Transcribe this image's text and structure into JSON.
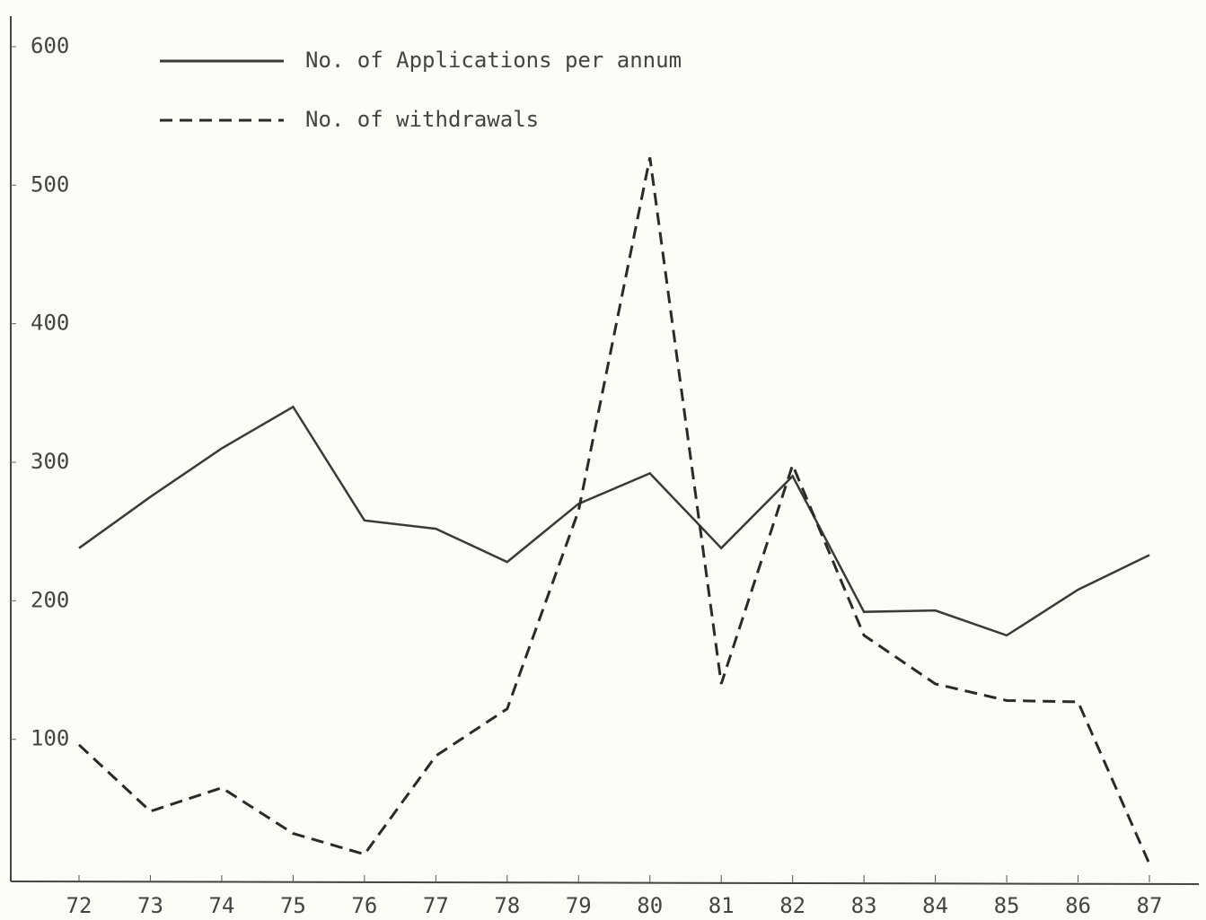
{
  "chart_data": {
    "type": "line",
    "categories": [
      "72",
      "73",
      "74",
      "75",
      "76",
      "77",
      "78",
      "79",
      "80",
      "81",
      "82",
      "83",
      "84",
      "85",
      "86",
      "87"
    ],
    "series": [
      {
        "name": "No. of Applications per annum",
        "color": "#3a3a3a",
        "style": "solid",
        "values": [
          238,
          275,
          310,
          340,
          258,
          252,
          228,
          270,
          292,
          238,
          290,
          192,
          193,
          175,
          208,
          233
        ]
      },
      {
        "name": "No. of withdrawals",
        "color": "#2a2a2a",
        "style": "dashed",
        "values": [
          96,
          48,
          65,
          32,
          17,
          88,
          122,
          265,
          520,
          140,
          298,
          175,
          140,
          128,
          127,
          10
        ]
      }
    ],
    "ylim": [
      0,
      600
    ],
    "yticks": [
      100,
      200,
      300,
      400,
      500,
      600
    ],
    "grid": false
  }
}
